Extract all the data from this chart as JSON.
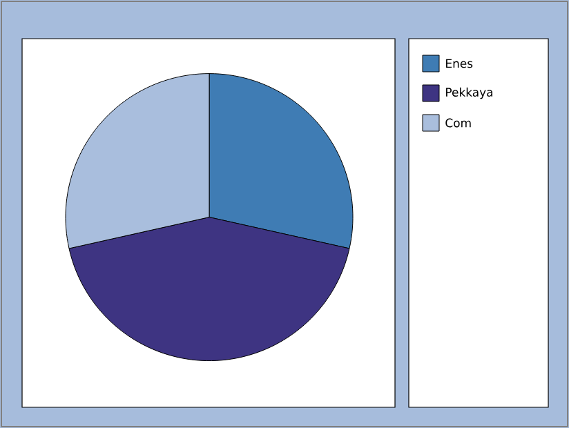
{
  "chart_data": {
    "type": "pie",
    "categories": [
      "Enes",
      "Pekkaya",
      "Com"
    ],
    "values": [
      28.5,
      43,
      28.5
    ],
    "colors": [
      "#3f7cb4",
      "#3e3482",
      "#a9bedd"
    ],
    "legend": "right"
  }
}
